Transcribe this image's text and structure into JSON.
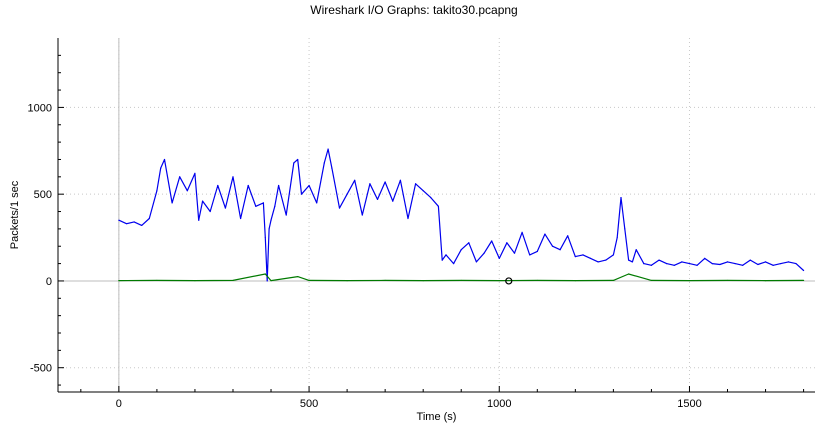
{
  "window": {
    "title": "Wireshark I/O Graphs: takito30.pcapng"
  },
  "chart_data": {
    "type": "line",
    "title": "Wireshark I/O Graphs: takito30.pcapng",
    "xlabel": "Time (s)",
    "ylabel": "Packets/1 sec",
    "xlim": [
      -160,
      1830
    ],
    "ylim": [
      -640,
      1400
    ],
    "xticks": [
      0,
      500,
      1000,
      1500
    ],
    "yticks": [
      -500,
      0,
      500,
      1000
    ],
    "grid": true,
    "marker": {
      "x": 1025,
      "y": 0,
      "shape": "open-circle"
    },
    "series": [
      {
        "color": "#0000ee",
        "x": [
          0,
          20,
          40,
          60,
          80,
          100,
          110,
          120,
          140,
          160,
          180,
          200,
          210,
          220,
          240,
          260,
          280,
          300,
          320,
          340,
          360,
          380,
          385,
          390,
          395,
          400,
          410,
          420,
          440,
          460,
          470,
          480,
          500,
          520,
          540,
          550,
          560,
          580,
          600,
          620,
          640,
          660,
          680,
          700,
          720,
          740,
          760,
          780,
          800,
          820,
          840,
          850,
          860,
          880,
          900,
          920,
          940,
          960,
          980,
          1000,
          1020,
          1040,
          1060,
          1080,
          1100,
          1120,
          1140,
          1160,
          1180,
          1200,
          1220,
          1240,
          1260,
          1280,
          1300,
          1310,
          1320,
          1330,
          1340,
          1350,
          1360,
          1380,
          1400,
          1420,
          1440,
          1460,
          1480,
          1500,
          1520,
          1540,
          1560,
          1580,
          1600,
          1620,
          1640,
          1660,
          1680,
          1700,
          1720,
          1740,
          1760,
          1780,
          1800
        ],
        "values": [
          350,
          330,
          340,
          320,
          360,
          520,
          650,
          700,
          450,
          600,
          520,
          620,
          350,
          460,
          400,
          550,
          420,
          600,
          360,
          550,
          430,
          450,
          250,
          0,
          300,
          350,
          430,
          550,
          380,
          680,
          700,
          500,
          550,
          450,
          680,
          760,
          650,
          420,
          500,
          580,
          380,
          560,
          470,
          570,
          460,
          580,
          360,
          560,
          520,
          480,
          430,
          120,
          150,
          100,
          180,
          220,
          110,
          160,
          230,
          130,
          220,
          160,
          280,
          150,
          170,
          270,
          200,
          180,
          260,
          140,
          150,
          130,
          110,
          120,
          150,
          250,
          480,
          300,
          120,
          110,
          180,
          100,
          90,
          120,
          100,
          90,
          110,
          100,
          90,
          130,
          100,
          95,
          110,
          100,
          90,
          120,
          95,
          110,
          90,
          100,
          110,
          100,
          60
        ]
      },
      {
        "color": "#007a00",
        "x": [
          0,
          100,
          200,
          300,
          385,
          400,
          470,
          500,
          600,
          700,
          800,
          900,
          1000,
          1100,
          1200,
          1300,
          1340,
          1400,
          1500,
          1600,
          1700,
          1800
        ],
        "values": [
          2,
          3,
          2,
          3,
          40,
          2,
          25,
          3,
          2,
          3,
          2,
          3,
          2,
          3,
          2,
          3,
          40,
          3,
          2,
          3,
          2,
          3
        ]
      }
    ]
  }
}
